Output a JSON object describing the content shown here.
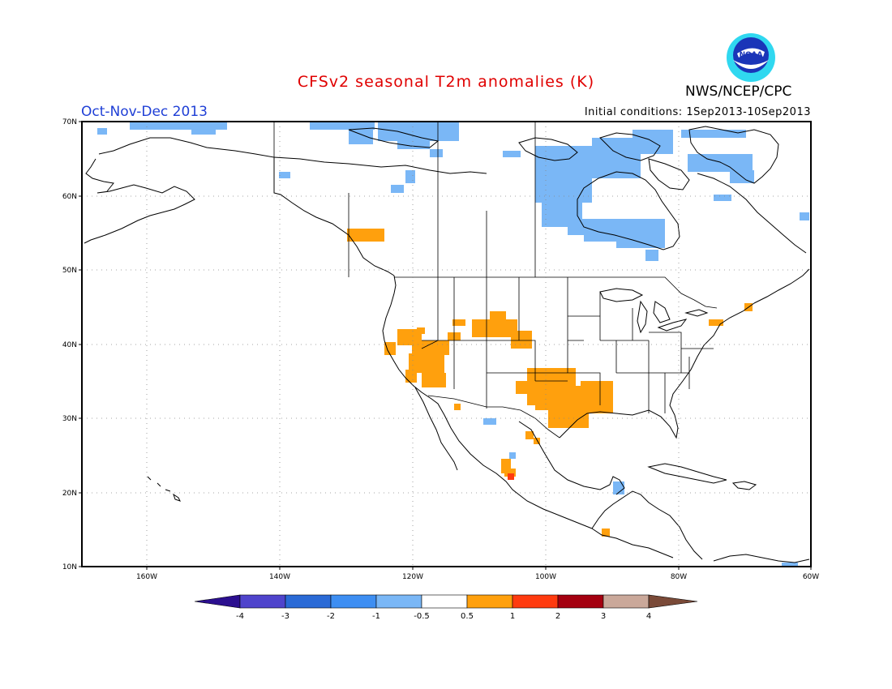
{
  "header": {
    "title": "CFSv2 seasonal T2m anomalies (K)",
    "season": "Oct-Nov-Dec 2013",
    "initial_conditions": "Initial conditions: 1Sep2013-10Sep2013",
    "agency": "NWS/NCEP/CPC",
    "logo_text": "NOAA"
  },
  "map": {
    "projection": "lat-lon",
    "lon_range": [
      -171,
      -60
    ],
    "lat_range": [
      10,
      70
    ],
    "lat_labels": [
      "70N",
      "60N",
      "50N",
      "40N",
      "30N",
      "20N",
      "10N"
    ],
    "lon_labels": [
      "160W",
      "140W",
      "120W",
      "100W",
      "80W",
      "60W"
    ],
    "grid": "dotted"
  },
  "colorbar": {
    "labels": [
      "-4",
      "-3",
      "-2",
      "-1",
      "-0.5",
      "0.5",
      "1",
      "2",
      "3",
      "4"
    ],
    "colors": [
      "#2b0f8f",
      "#4f44cc",
      "#2a6ad6",
      "#3d8ef2",
      "#7ab7f6",
      "#ffffff",
      "#ffa00d",
      "#ff3b0f",
      "#a40010",
      "#caa89a",
      "#7a4a38"
    ]
  },
  "anomaly_colors": {
    "light_blue": "#7ab7f6",
    "orange": "#ffa00d",
    "red": "#ff3b0f"
  }
}
